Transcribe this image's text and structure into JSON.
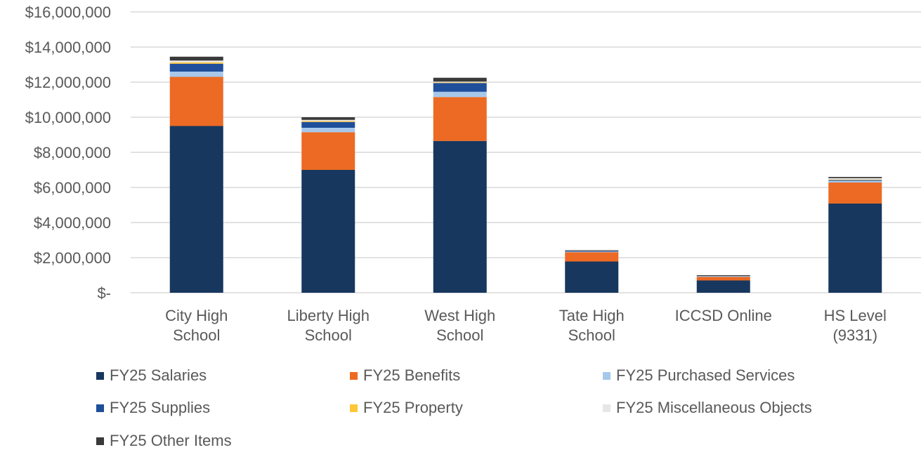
{
  "chart_data": {
    "type": "bar",
    "stacked": true,
    "categories": [
      [
        "City High",
        "School"
      ],
      [
        "Liberty High",
        "School"
      ],
      [
        "West High",
        "School"
      ],
      [
        "Tate High",
        "School"
      ],
      [
        "ICCSD Online"
      ],
      [
        "HS Level",
        "(9331)"
      ]
    ],
    "ylim": [
      0,
      16000000
    ],
    "yticks": [
      {
        "value": 0,
        "label": "$-"
      },
      {
        "value": 2000000,
        "label": "$2,000,000"
      },
      {
        "value": 4000000,
        "label": "$4,000,000"
      },
      {
        "value": 6000000,
        "label": "$6,000,000"
      },
      {
        "value": 8000000,
        "label": "$8,000,000"
      },
      {
        "value": 10000000,
        "label": "$10,000,000"
      },
      {
        "value": 12000000,
        "label": "$12,000,000"
      },
      {
        "value": 14000000,
        "label": "$14,000,000"
      },
      {
        "value": 16000000,
        "label": "$16,000,000"
      }
    ],
    "grid": true,
    "legend_position": "bottom",
    "series": [
      {
        "name": "FY25 Salaries",
        "color": "#17375e",
        "values": [
          9500000,
          7000000,
          8650000,
          1780000,
          700000,
          5080000
        ]
      },
      {
        "name": "FY25 Benefits",
        "color": "#ec6a23",
        "values": [
          2800000,
          2150000,
          2500000,
          530000,
          200000,
          1200000
        ]
      },
      {
        "name": "FY25 Purchased Services",
        "color": "#a7c8ea",
        "values": [
          300000,
          250000,
          300000,
          30000,
          30000,
          100000
        ]
      },
      {
        "name": "FY25 Supplies",
        "color": "#1f4e9b",
        "values": [
          450000,
          330000,
          500000,
          40000,
          20000,
          40000
        ]
      },
      {
        "name": "FY25 Property",
        "color": "#ffc637",
        "values": [
          80000,
          50000,
          30000,
          5000,
          5000,
          30000
        ]
      },
      {
        "name": "FY25 Miscellaneous Objects",
        "color": "#e7e6e6",
        "values": [
          100000,
          70000,
          50000,
          5000,
          5000,
          80000
        ]
      },
      {
        "name": "FY25 Other Items",
        "color": "#3a3a3a",
        "values": [
          220000,
          150000,
          220000,
          30000,
          40000,
          70000
        ]
      }
    ]
  }
}
